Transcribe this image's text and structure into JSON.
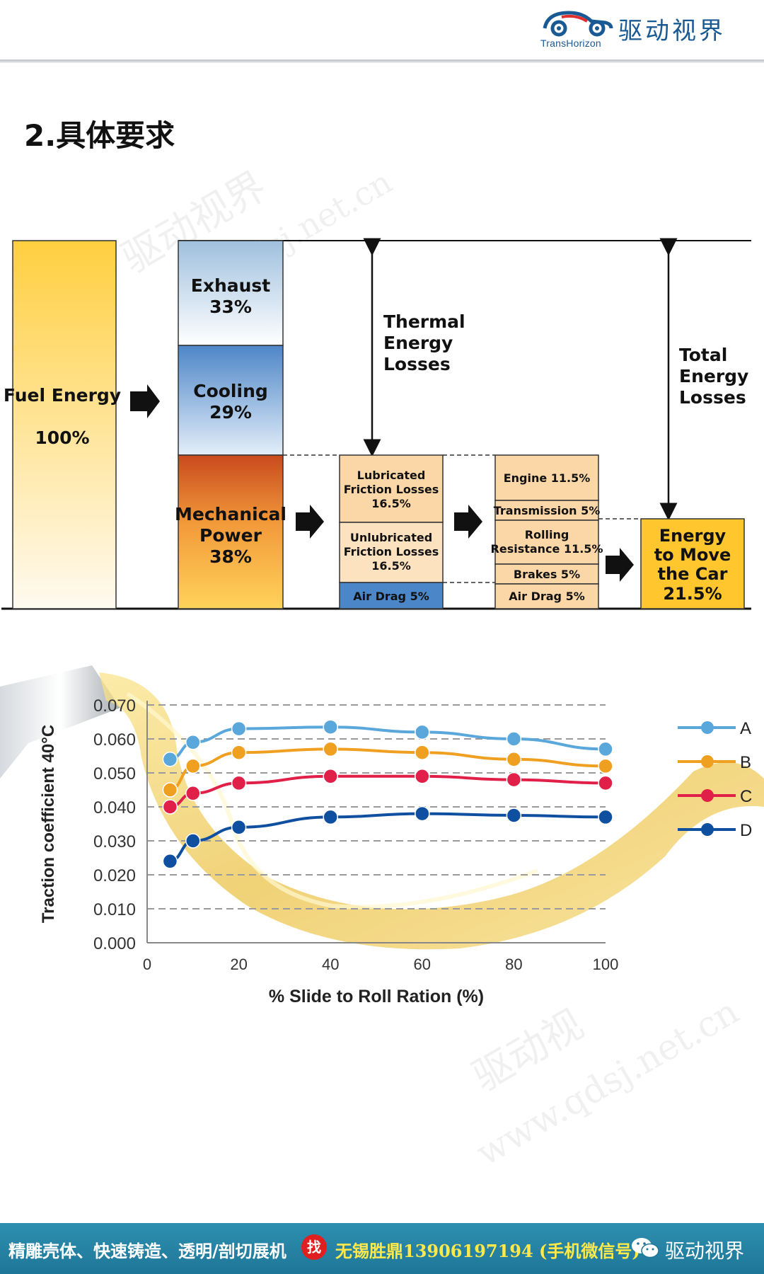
{
  "header": {
    "logo_en": "TransHorizon",
    "logo_cn": "驱动视界",
    "logo_icon": "car-logo-icon",
    "brand_color": "#1a5a94"
  },
  "page_title": "2.具体要求",
  "watermarks": [
    "驱动视界",
    "qdsj.net.cn",
    "驱动视",
    "www.qdsj.net.cn"
  ],
  "energy_diagram": {
    "fuel": {
      "label": "Fuel Energy",
      "value": "100%"
    },
    "exhaust": {
      "label": "Exhaust",
      "value": "33%"
    },
    "cooling": {
      "label": "Cooling",
      "value": "29%"
    },
    "mechanical": {
      "label": "Mechanical Power",
      "value": "38%"
    },
    "thermal_losses": "Thermal Energy Losses",
    "total_losses": "Total Energy Losses",
    "friction": [
      {
        "label": "Lubricated Friction Losses",
        "value": "16.5%"
      },
      {
        "label": "Unlubricated Friction Losses",
        "value": "16.5%"
      },
      {
        "label": "Air Drag 5%"
      }
    ],
    "breakdown": [
      "Engine 11.5%",
      "Transmission 5%",
      "Rolling Resistance 11.5%",
      "Brakes 5%",
      "Air Drag 5%"
    ],
    "result": {
      "label": "Energy to Move the Car",
      "value": "21.5%"
    }
  },
  "chart_data": {
    "type": "line",
    "title": "",
    "xlabel": "% Slide to Roll Ration (%)",
    "ylabel": "Traction coefficient  40°C",
    "xlim": [
      0,
      100
    ],
    "ylim": [
      0,
      0.07
    ],
    "xticks": [
      "0",
      "20",
      "40",
      "60",
      "80",
      "100"
    ],
    "yticks": [
      "0.000",
      "0.010",
      "0.020",
      "0.030",
      "0.040",
      "0.050",
      "0.060",
      "0.070"
    ],
    "grid": "dashed horizontal",
    "legend_position": "right",
    "x": [
      5,
      10,
      20,
      40,
      60,
      80,
      100
    ],
    "series": [
      {
        "name": "A",
        "color": "#5aa7dc",
        "values": [
          0.054,
          0.059,
          0.063,
          0.0635,
          0.062,
          0.06,
          0.057
        ]
      },
      {
        "name": "B",
        "color": "#f0a020",
        "values": [
          0.045,
          0.052,
          0.056,
          0.057,
          0.056,
          0.054,
          0.052
        ]
      },
      {
        "name": "C",
        "color": "#e02048",
        "values": [
          0.04,
          0.044,
          0.047,
          0.049,
          0.049,
          0.048,
          0.047
        ]
      },
      {
        "name": "D",
        "color": "#0f4fa0",
        "values": [
          0.024,
          0.03,
          0.034,
          0.037,
          0.038,
          0.0375,
          0.037
        ]
      }
    ]
  },
  "footer": {
    "text": "精雕壳体、快速铸造、透明/剖切展机",
    "badge": "找",
    "contact": "无锡胜鼎13906197194 (手机微信号)",
    "wechat_icon": "wechat-icon",
    "brand": "驱动视界",
    "bg_color": "#1e7698"
  }
}
